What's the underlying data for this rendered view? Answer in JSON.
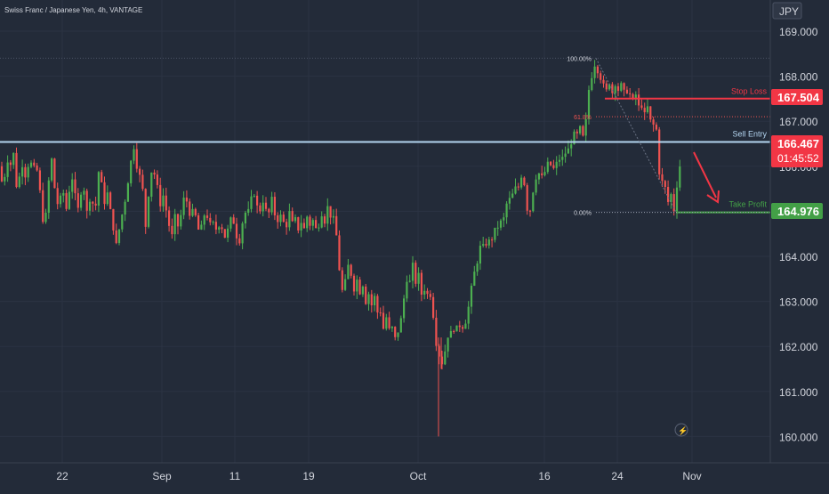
{
  "header": {
    "title": "Swiss Franc / Japanese Yen, 4h, VANTAGE",
    "currency": "JPY"
  },
  "colors": {
    "background": "#232b39",
    "up": "#26a69a",
    "up_candle": "#4caf50",
    "down": "#ef5350",
    "resistance": "#b3d4ef",
    "stop": "#f23645",
    "target": "#43a047",
    "axis_text": "#d1d4dc"
  },
  "levels": {
    "stop_loss": {
      "label": "Stop Loss",
      "price": "167.504"
    },
    "sell_entry": {
      "label": "Sell Entry",
      "price": "166.467",
      "countdown": "01:45:52"
    },
    "take_profit": {
      "label": "Take Profit",
      "price": "164.976"
    }
  },
  "fib": {
    "labels": [
      "100.00%",
      "61.8%",
      "0.00%"
    ],
    "high": 168.4,
    "mid": 167.1,
    "low": 164.976
  },
  "chart_data": {
    "type": "candlestick",
    "title": "Swiss Franc / Japanese Yen, 4h, VANTAGE",
    "y_axis": {
      "ticks": [
        "169.000",
        "168.000",
        "167.000",
        "166.000",
        "165.000",
        "164.000",
        "163.000",
        "162.000",
        "161.000",
        "160.000"
      ],
      "range": [
        159.6,
        170.0
      ]
    },
    "x_axis": {
      "ticks": [
        "22",
        "Sep",
        "11",
        "19",
        "Oct",
        "16",
        "24",
        "Nov"
      ]
    },
    "price_path": [
      [
        0,
        166.0
      ],
      [
        3,
        165.5
      ],
      [
        6,
        165.9
      ],
      [
        10,
        166.3
      ],
      [
        13,
        165.9
      ],
      [
        16,
        166.4
      ],
      [
        20,
        165.1
      ],
      [
        23,
        166.2
      ],
      [
        26,
        166.0
      ],
      [
        30,
        165.7
      ],
      [
        33,
        166.3
      ],
      [
        37,
        165.8
      ],
      [
        40,
        166.1
      ],
      [
        44,
        165.6
      ],
      [
        47,
        165.0
      ],
      [
        50,
        164.6
      ],
      [
        54,
        165.4
      ],
      [
        57,
        166.4
      ],
      [
        60,
        165.7
      ],
      [
        64,
        165.2
      ],
      [
        67,
        165.1
      ],
      [
        70,
        165.6
      ],
      [
        74,
        165.0
      ],
      [
        77,
        165.3
      ],
      [
        80,
        165.9
      ],
      [
        84,
        165.4
      ],
      [
        87,
        164.9
      ],
      [
        90,
        165.4
      ],
      [
        94,
        165.6
      ],
      [
        97,
        164.9
      ],
      [
        101,
        165.3
      ],
      [
        104,
        165.2
      ],
      [
        107,
        165.0
      ],
      [
        111,
        165.9
      ],
      [
        114,
        165.6
      ],
      [
        117,
        165.2
      ],
      [
        121,
        165.4
      ],
      [
        124,
        165.0
      ],
      [
        127,
        164.7
      ],
      [
        131,
        164.2
      ],
      [
        134,
        164.6
      ],
      [
        137,
        164.9
      ],
      [
        141,
        165.3
      ],
      [
        144,
        165.7
      ],
      [
        148,
        166.2
      ],
      [
        151,
        166.5
      ],
      [
        154,
        166.0
      ],
      [
        158,
        165.7
      ],
      [
        161,
        165.4
      ],
      [
        164,
        164.6
      ],
      [
        167,
        165.4
      ],
      [
        171,
        166.0
      ],
      [
        174,
        165.8
      ],
      [
        177,
        165.5
      ],
      [
        181,
        165.1
      ],
      [
        184,
        165.4
      ],
      [
        187,
        165.0
      ],
      [
        191,
        164.6
      ],
      [
        194,
        164.4
      ],
      [
        197,
        164.9
      ],
      [
        201,
        164.6
      ],
      [
        204,
        165.0
      ],
      [
        207,
        165.3
      ],
      [
        211,
        165.2
      ],
      [
        214,
        164.9
      ],
      [
        218,
        165.0
      ],
      [
        221,
        164.8
      ],
      [
        224,
        164.5
      ],
      [
        228,
        164.7
      ],
      [
        231,
        165.1
      ],
      [
        234,
        164.8
      ],
      [
        238,
        164.6
      ],
      [
        241,
        164.8
      ],
      [
        244,
        164.5
      ],
      [
        248,
        164.9
      ],
      [
        251,
        164.4
      ],
      [
        255,
        164.5
      ],
      [
        258,
        164.7
      ],
      [
        261,
        164.9
      ],
      [
        265,
        164.6
      ],
      [
        268,
        164.2
      ],
      [
        271,
        164.6
      ],
      [
        275,
        165.0
      ],
      [
        278,
        164.9
      ],
      [
        281,
        165.1
      ],
      [
        285,
        165.5
      ],
      [
        288,
        165.2
      ],
      [
        291,
        164.9
      ],
      [
        295,
        165.3
      ],
      [
        298,
        165.1
      ],
      [
        301,
        164.8
      ],
      [
        305,
        165.3
      ],
      [
        308,
        165.0
      ],
      [
        311,
        164.8
      ],
      [
        315,
        164.9
      ],
      [
        318,
        164.8
      ],
      [
        321,
        164.6
      ],
      [
        325,
        165.0
      ],
      [
        328,
        164.7
      ],
      [
        332,
        164.8
      ],
      [
        335,
        164.6
      ],
      [
        338,
        164.8
      ],
      [
        342,
        164.6
      ],
      [
        345,
        164.9
      ],
      [
        348,
        164.7
      ],
      [
        352,
        164.8
      ],
      [
        355,
        164.6
      ],
      [
        358,
        164.7
      ],
      [
        362,
        165.0
      ],
      [
        365,
        164.8
      ],
      [
        368,
        165.1
      ],
      [
        372,
        164.9
      ],
      [
        375,
        164.8
      ],
      [
        378,
        164.5
      ],
      [
        381,
        163.8
      ],
      [
        385,
        163.2
      ],
      [
        388,
        163.4
      ],
      [
        391,
        163.8
      ],
      [
        395,
        163.6
      ],
      [
        398,
        163.3
      ],
      [
        401,
        163.5
      ],
      [
        405,
        163.2
      ],
      [
        408,
        163.4
      ],
      [
        411,
        163.0
      ],
      [
        415,
        163.2
      ],
      [
        418,
        162.9
      ],
      [
        421,
        163.1
      ],
      [
        425,
        162.7
      ],
      [
        428,
        162.8
      ],
      [
        431,
        162.4
      ],
      [
        435,
        162.7
      ],
      [
        438,
        162.3
      ],
      [
        441,
        162.4
      ],
      [
        445,
        162.1
      ],
      [
        448,
        162.4
      ],
      [
        451,
        162.6
      ],
      [
        455,
        163.2
      ],
      [
        458,
        163.6
      ],
      [
        461,
        163.4
      ],
      [
        465,
        163.9
      ],
      [
        468,
        163.3
      ],
      [
        471,
        163.6
      ],
      [
        475,
        163.0
      ],
      [
        478,
        163.4
      ],
      [
        481,
        163.1
      ],
      [
        485,
        163.2
      ],
      [
        488,
        162.5
      ],
      [
        491,
        162.0
      ],
      [
        494,
        161.8
      ],
      [
        498,
        161.6
      ],
      [
        501,
        162.0
      ],
      [
        505,
        162.4
      ],
      [
        508,
        162.2
      ],
      [
        511,
        162.5
      ],
      [
        515,
        162.3
      ],
      [
        518,
        162.6
      ],
      [
        521,
        162.4
      ],
      [
        525,
        162.7
      ],
      [
        528,
        163.0
      ],
      [
        531,
        163.4
      ],
      [
        535,
        163.8
      ],
      [
        538,
        164.0
      ],
      [
        541,
        164.3
      ],
      [
        545,
        164.1
      ],
      [
        548,
        164.5
      ],
      [
        551,
        164.2
      ],
      [
        555,
        164.6
      ],
      [
        558,
        164.5
      ],
      [
        561,
        164.8
      ],
      [
        565,
        164.7
      ],
      [
        568,
        165.0
      ],
      [
        571,
        165.3
      ],
      [
        575,
        165.2
      ],
      [
        578,
        165.6
      ],
      [
        581,
        165.4
      ],
      [
        585,
        165.7
      ],
      [
        588,
        166.0
      ],
      [
        591,
        165.2
      ],
      [
        595,
        164.9
      ],
      [
        598,
        165.3
      ],
      [
        601,
        165.7
      ],
      [
        605,
        165.9
      ],
      [
        608,
        165.7
      ],
      [
        611,
        165.8
      ],
      [
        615,
        166.0
      ],
      [
        618,
        166.1
      ],
      [
        621,
        165.9
      ],
      [
        625,
        166.0
      ],
      [
        628,
        166.2
      ],
      [
        631,
        166.1
      ],
      [
        635,
        166.3
      ],
      [
        638,
        166.3
      ],
      [
        641,
        166.5
      ],
      [
        645,
        166.7
      ],
      [
        648,
        166.6
      ],
      [
        651,
        166.9
      ],
      [
        655,
        166.6
      ],
      [
        658,
        166.8
      ],
      [
        661,
        167.6
      ],
      [
        665,
        168.0
      ],
      [
        668,
        168.3
      ],
      [
        671,
        168.2
      ],
      [
        675,
        168.0
      ],
      [
        678,
        167.8
      ],
      [
        681,
        167.6
      ],
      [
        685,
        167.9
      ],
      [
        688,
        167.6
      ],
      [
        691,
        167.9
      ],
      [
        695,
        167.7
      ],
      [
        698,
        167.8
      ],
      [
        701,
        167.6
      ],
      [
        705,
        167.7
      ],
      [
        708,
        167.6
      ],
      [
        711,
        167.4
      ],
      [
        715,
        167.6
      ],
      [
        718,
        167.3
      ],
      [
        721,
        167.4
      ],
      [
        725,
        167.1
      ],
      [
        728,
        167.3
      ],
      [
        731,
        167.0
      ],
      [
        735,
        166.9
      ],
      [
        738,
        166.8
      ],
      [
        741,
        165.9
      ],
      [
        745,
        165.6
      ],
      [
        748,
        165.5
      ],
      [
        751,
        165.2
      ],
      [
        755,
        165.4
      ],
      [
        758,
        165.0
      ],
      [
        761,
        165.6
      ],
      [
        765,
        166.1
      ],
      [
        767,
        166.467
      ]
    ],
    "notable_lows": [
      [
        493,
        160.0
      ],
      [
        496,
        161.5
      ]
    ]
  },
  "toolbar": {
    "lightning": "⚡"
  }
}
